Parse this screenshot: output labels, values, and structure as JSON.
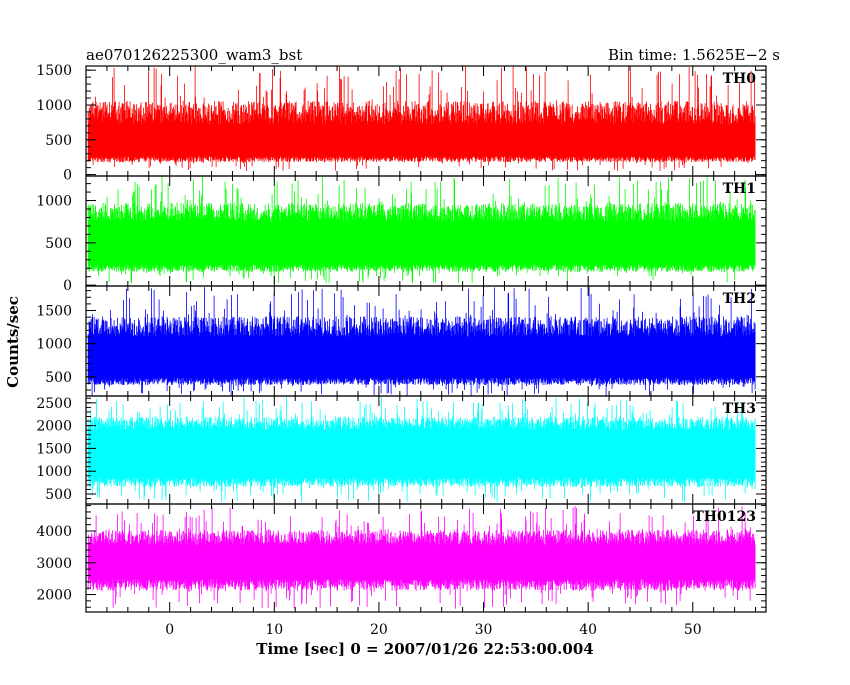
{
  "header": {
    "left_title": "ae070126225300_wam3_bst",
    "right_title": "Bin time: 1.5625E−2 s"
  },
  "chart_data": {
    "type": "line",
    "xlabel": "Time [sec] 0 = 2007/01/26 22:53:00.004",
    "ylabel": "Counts/sec",
    "xlim": [
      -8,
      57
    ],
    "data_x_range": [
      -7.8,
      56.0
    ],
    "x_ticks": [
      0,
      10,
      20,
      30,
      40,
      50
    ],
    "grid": false,
    "panels": [
      {
        "name": "TH0",
        "color": "#ff0000",
        "ylim": [
          -20,
          1560
        ],
        "y_ticks": [
          0,
          500,
          1000,
          1500
        ],
        "y_tick_labels": [
          "0",
          "500",
          "1000",
          "1500"
        ],
        "band_low": 220,
        "band_high": 890,
        "min": 50,
        "max": 1560
      },
      {
        "name": "TH1",
        "color": "#00ff00",
        "ylim": [
          -10,
          1290
        ],
        "y_ticks": [
          0,
          500,
          1000
        ],
        "y_tick_labels": [
          "0",
          "500",
          "1000"
        ],
        "band_low": 200,
        "band_high": 860,
        "min": 20,
        "max": 1300
      },
      {
        "name": "TH2",
        "color": "#0000ff",
        "ylim": [
          210,
          1870
        ],
        "y_ticks": [
          500,
          1000,
          1500
        ],
        "y_tick_labels": [
          "500",
          "1000",
          "1500"
        ],
        "band_low": 430,
        "band_high": 1260,
        "min": 210,
        "max": 1870
      },
      {
        "name": "TH3",
        "color": "#00ffff",
        "ylim": [
          280,
          2650
        ],
        "y_ticks": [
          500,
          1000,
          1500,
          2000,
          2500
        ],
        "y_tick_labels": [
          "500",
          "1000",
          "1500",
          "2000",
          "2500"
        ],
        "band_low": 760,
        "band_high": 2050,
        "min": 320,
        "max": 2650
      },
      {
        "name": "TH0123",
        "color": "#ff00ff",
        "ylim": [
          1450,
          4850
        ],
        "y_ticks": [
          2000,
          3000,
          4000
        ],
        "y_tick_labels": [
          "2000",
          "3000",
          "4000"
        ],
        "band_low": 2300,
        "band_high": 3800,
        "min": 1550,
        "max": 4780
      }
    ]
  }
}
